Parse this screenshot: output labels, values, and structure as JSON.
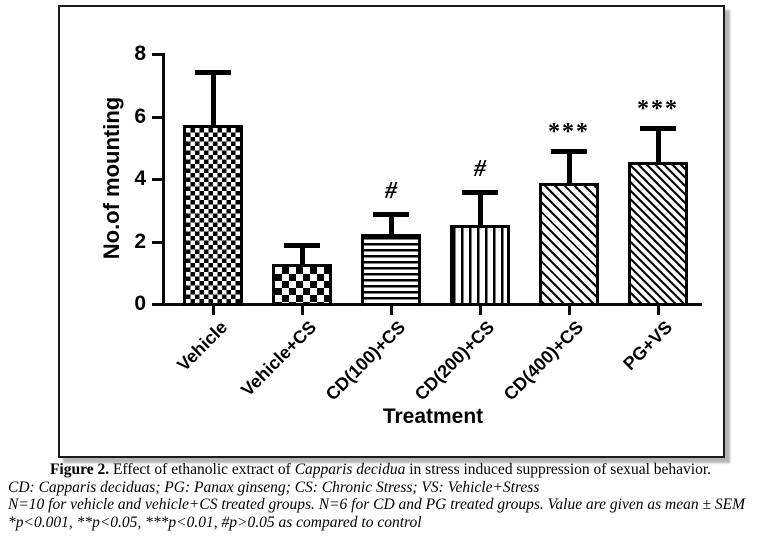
{
  "chart_data": {
    "type": "bar",
    "title": "",
    "xlabel": "Treatment",
    "ylabel": "No.of mounting",
    "categories": [
      "Vehicle",
      "Vehicle+CS",
      "CD(100)+CS",
      "CD(200)+CS",
      "CD(400)+CS",
      "PG+VS"
    ],
    "values": [
      5.7,
      1.25,
      2.2,
      2.5,
      3.85,
      4.5
    ],
    "sem_upper": [
      1.7,
      0.6,
      0.65,
      1.05,
      1.0,
      1.1
    ],
    "annotations": [
      "",
      "",
      "#",
      "#",
      "***",
      "***"
    ],
    "patterns": [
      "fine-check",
      "checkerboard",
      "hlines",
      "vlines",
      "diag",
      "diag-dense"
    ],
    "ylim": [
      0,
      8
    ],
    "yticks": [
      0,
      2,
      4,
      6,
      8
    ],
    "grid": false,
    "legend": false,
    "bar_outline_color": "#000000",
    "bar_fill_style": "black-and-white patterns",
    "error_bars": "upper SEM only, T-caps"
  },
  "caption": {
    "fig_label": "Figure 2.",
    "line1_a": " Effect of ethanolic extract of ",
    "line1_species": "Capparis decidua",
    "line1_b": " in stress induced suppression of sexual behavior.",
    "line2": "CD: Capparis deciduas; PG: Panax ginseng; CS: Chronic Stress; VS: Vehicle+Stress",
    "line3": "N=10 for vehicle and vehicle+CS treated groups. N=6 for CD and PG treated groups. Value are given as mean ± SEM",
    "line4": "*p<0.001, **p<0.05, ***p<0.01, #p>0.05 as compared to control"
  }
}
